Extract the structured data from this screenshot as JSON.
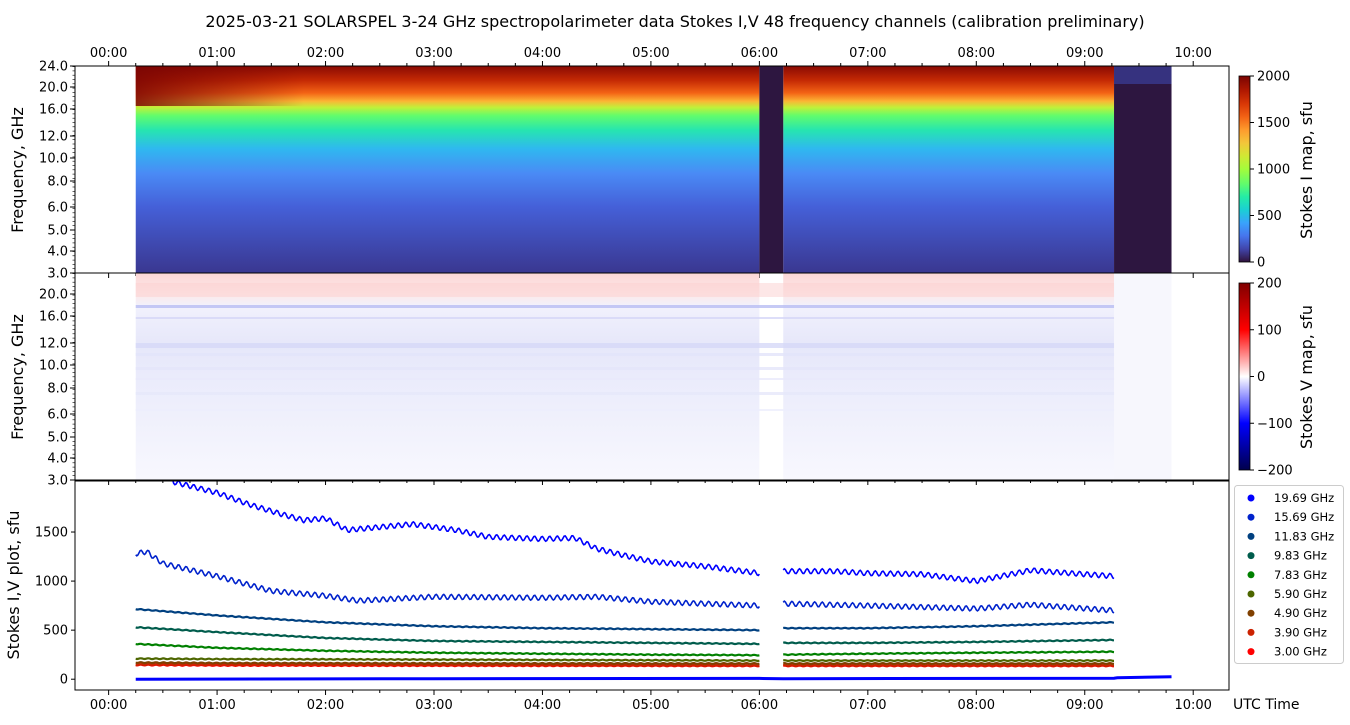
{
  "chart_data": [
    {
      "type": "heatmap",
      "name": "stokes-i-map",
      "title": "2025-03-21  SOLARSPEL  3-24 GHz spectropolarimeter data   Stokes I,V   48 frequency channels   (calibration preliminary)",
      "ylabel": "Frequency, GHz",
      "yticks": [
        "3.0",
        "4.0",
        "5.0",
        "6.0",
        "8.0",
        "10.0",
        "12.0",
        "16.0",
        "20.0",
        "24.0"
      ],
      "xticks_top": [
        "00:00",
        "01:00",
        "02:00",
        "03:00",
        "04:00",
        "05:00",
        "06:00",
        "07:00",
        "08:00",
        "09:00",
        "10:00"
      ],
      "xlim_hours": [
        -0.31,
        10.33
      ],
      "data_interval_hours": [
        0.25,
        9.8
      ],
      "gaps_hours": [
        [
          6.0,
          6.22
        ],
        [
          9.27,
          9.8
        ]
      ],
      "colorbar": {
        "label": "Stokes I map, sfu",
        "ticks": [
          "0",
          "500",
          "1000",
          "1500",
          "2000"
        ],
        "range": [
          0,
          2000
        ],
        "colormap": "turbo"
      }
    },
    {
      "type": "heatmap",
      "name": "stokes-v-map",
      "ylabel": "Frequency, GHz",
      "yticks": [
        "3.0",
        "4.0",
        "5.0",
        "6.0",
        "8.0",
        "10.0",
        "12.0",
        "16.0",
        "20.0"
      ],
      "colorbar": {
        "label": "Stokes V map, sfu",
        "ticks": [
          "−200",
          "−100",
          "0",
          "100",
          "200"
        ],
        "range": [
          -200,
          200
        ],
        "colormap": "seismic"
      }
    },
    {
      "type": "line",
      "name": "stokes-iv-plot",
      "ylabel": "Stokes I,V plot, sfu",
      "xlabel": "UTC Time",
      "xticks": [
        "00:00",
        "01:00",
        "02:00",
        "03:00",
        "04:00",
        "05:00",
        "06:00",
        "07:00",
        "08:00",
        "09:00",
        "10:00"
      ],
      "yticks": [
        "0",
        "500",
        "1000",
        "1500"
      ],
      "ylim": [
        -110,
        2020
      ],
      "legend_position": "right",
      "series": [
        {
          "name": "19.69 GHz",
          "color": "#0000ff",
          "x": [
            0.25,
            0.6,
            1.0,
            1.3,
            1.6,
            1.8,
            2.0,
            2.2,
            2.5,
            2.8,
            3.2,
            3.5,
            4.0,
            4.3,
            4.5,
            4.8,
            5.0,
            5.5,
            6.0,
            6.22,
            6.7,
            7.0,
            7.5,
            8.0,
            8.5,
            9.0,
            9.27
          ],
          "y": [
            2600,
            2010,
            1900,
            1780,
            1680,
            1620,
            1640,
            1520,
            1550,
            1580,
            1520,
            1450,
            1430,
            1440,
            1330,
            1250,
            1200,
            1150,
            1080,
            1100,
            1100,
            1080,
            1070,
            1000,
            1110,
            1070,
            1050
          ]
        },
        {
          "name": "15.69 GHz",
          "color": "#0022cc",
          "x": [
            0.25,
            0.35,
            0.5,
            1.0,
            1.5,
            2.0,
            2.3,
            3.0,
            4.0,
            4.5,
            5.0,
            6.0,
            6.22,
            7.0,
            8.0,
            8.5,
            9.27
          ],
          "y": [
            1280,
            1300,
            1180,
            1050,
            900,
            850,
            800,
            840,
            830,
            840,
            790,
            750,
            770,
            750,
            720,
            760,
            700
          ]
        },
        {
          "name": "11.83 GHz",
          "color": "#004080",
          "x": [
            0.25,
            1.0,
            2.0,
            3.0,
            4.0,
            5.0,
            6.0,
            6.22,
            7.0,
            8.0,
            9.27
          ],
          "y": [
            715,
            650,
            580,
            540,
            520,
            510,
            500,
            520,
            520,
            540,
            580
          ]
        },
        {
          "name": "9.83 GHz",
          "color": "#005c4c",
          "x": [
            0.25,
            1.0,
            2.0,
            3.0,
            4.0,
            5.0,
            6.0,
            6.22,
            7.0,
            8.0,
            9.27
          ],
          "y": [
            530,
            480,
            420,
            390,
            380,
            370,
            360,
            370,
            370,
            380,
            400
          ]
        },
        {
          "name": "7.83 GHz",
          "color": "#008000",
          "x": [
            0.25,
            1.0,
            2.0,
            3.0,
            4.0,
            5.0,
            6.0,
            6.22,
            7.0,
            8.0,
            9.27
          ],
          "y": [
            360,
            320,
            290,
            270,
            260,
            250,
            245,
            250,
            260,
            270,
            280
          ]
        },
        {
          "name": "5.90 GHz",
          "color": "#4d6600",
          "x": [
            0.25,
            1.0,
            3.0,
            6.0,
            6.22,
            9.27
          ],
          "y": [
            210,
            205,
            200,
            190,
            190,
            190
          ]
        },
        {
          "name": "4.90 GHz",
          "color": "#804000",
          "x": [
            0.25,
            1.0,
            3.0,
            6.0,
            6.22,
            9.27
          ],
          "y": [
            170,
            165,
            162,
            160,
            160,
            160
          ]
        },
        {
          "name": "3.90 GHz",
          "color": "#cc2200",
          "x": [
            0.25,
            1.0,
            3.0,
            6.0,
            6.22,
            9.27
          ],
          "y": [
            150,
            148,
            145,
            140,
            140,
            140
          ]
        },
        {
          "name": "3.00 GHz",
          "color": "#ff0000",
          "x": [
            0.25,
            1.0,
            3.0,
            6.0,
            6.22,
            9.27
          ],
          "y": [
            145,
            140,
            138,
            135,
            135,
            135
          ]
        }
      ],
      "v_traces": {
        "color": "#0000ff",
        "x": [
          0.25,
          3.0,
          6.0,
          6.22,
          9.27,
          9.3,
          9.8
        ],
        "y": [
          0,
          5,
          8,
          5,
          10,
          15,
          25
        ]
      }
    }
  ]
}
